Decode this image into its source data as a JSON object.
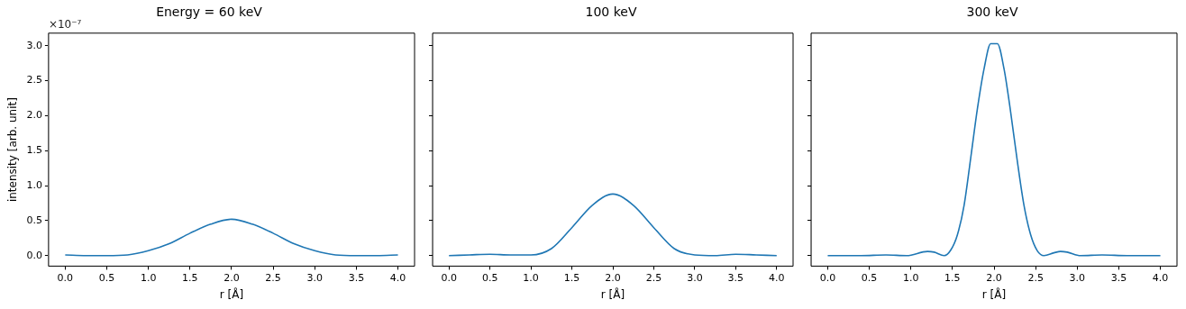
{
  "chart_data": [
    {
      "type": "line",
      "title": "Energy = 60 keV",
      "xlabel": "r [Å]",
      "ylabel": "intensity [arb. unit]",
      "annotations": [
        "×10⁻⁷"
      ],
      "color": "#1f77b4",
      "x": [
        0,
        0.25,
        0.5,
        0.75,
        1.0,
        1.25,
        1.5,
        1.75,
        2.0,
        2.25,
        2.5,
        2.75,
        3.0,
        3.25,
        3.5,
        3.75,
        4.0
      ],
      "values": [
        0.01,
        0.0,
        0.0,
        0.01,
        0.07,
        0.17,
        0.32,
        0.45,
        0.52,
        0.45,
        0.32,
        0.17,
        0.07,
        0.01,
        0.0,
        0.0,
        0.01
      ],
      "xlim": [
        -0.2,
        4.2
      ],
      "ylim": [
        -0.15,
        3.18
      ],
      "xticks": [
        {
          "value": 0,
          "label": "0.0"
        },
        0.5,
        {
          "value": 1,
          "label": "1.0"
        },
        1.5,
        {
          "value": 2,
          "label": "2.0"
        },
        2.5,
        {
          "value": 3,
          "label": "3.0"
        },
        3.5,
        {
          "value": 4,
          "label": "4.0"
        }
      ],
      "yticks": [
        {
          "value": 0,
          "label": "0.0"
        },
        0.5,
        {
          "value": 1,
          "label": "1.0"
        },
        1.5,
        {
          "value": 2,
          "label": "2.0"
        },
        2.5,
        {
          "value": 3,
          "label": "3.0"
        }
      ],
      "grid": false
    },
    {
      "type": "line",
      "title": "100 keV",
      "xlabel": "r [Å]",
      "color": "#1f77b4",
      "x": [
        0,
        0.25,
        0.5,
        0.75,
        1.0,
        1.25,
        1.5,
        1.75,
        2.0,
        2.25,
        2.5,
        2.75,
        3.0,
        3.25,
        3.5,
        3.75,
        4.0
      ],
      "values": [
        0.0,
        0.01,
        0.02,
        0.01,
        0.01,
        0.1,
        0.4,
        0.72,
        0.88,
        0.72,
        0.4,
        0.1,
        0.01,
        0.0,
        0.02,
        0.01,
        0.0
      ],
      "xlim": [
        -0.2,
        4.2
      ],
      "ylim": [
        -0.15,
        3.18
      ],
      "xticks": [
        {
          "value": 0,
          "label": "0.0"
        },
        0.5,
        {
          "value": 1,
          "label": "1.0"
        },
        1.5,
        {
          "value": 2,
          "label": "2.0"
        },
        2.5,
        {
          "value": 3,
          "label": "3.0"
        },
        3.5,
        {
          "value": 4,
          "label": "4.0"
        }
      ],
      "yticks": [
        {
          "value": 0,
          "label": null
        },
        {
          "value": 0.5,
          "label": null
        },
        {
          "value": 1,
          "label": null
        },
        {
          "value": 1.5,
          "label": null
        },
        {
          "value": 2,
          "label": null
        },
        {
          "value": 2.5,
          "label": null
        },
        {
          "value": 3,
          "label": null
        }
      ],
      "tick_labels": "x",
      "grid": false
    },
    {
      "type": "line",
      "title": "300 keV",
      "xlabel": "r [Å]",
      "color": "#1f77b4",
      "x": [
        0,
        0.4,
        0.7,
        0.95,
        1.2,
        1.28,
        1.4,
        1.48,
        1.56,
        1.64,
        1.72,
        1.8,
        1.88,
        1.96,
        2.04,
        2.12,
        2.2,
        2.28,
        2.36,
        2.44,
        2.52,
        2.6,
        2.72,
        2.8,
        2.88,
        3.04,
        3.3,
        3.6,
        4.0
      ],
      "values": [
        0.0,
        0.0,
        0.01,
        0.0,
        0.06,
        0.05,
        0.0,
        0.08,
        0.3,
        0.72,
        1.4,
        2.1,
        2.67,
        3.03,
        3.03,
        2.67,
        2.05,
        1.35,
        0.72,
        0.3,
        0.07,
        0.0,
        0.04,
        0.06,
        0.05,
        0.0,
        0.01,
        0.0,
        0.0
      ],
      "xlim": [
        -0.2,
        4.2
      ],
      "ylim": [
        -0.15,
        3.18
      ],
      "xticks": [
        {
          "value": 0,
          "label": "0.0"
        },
        0.5,
        {
          "value": 1,
          "label": "1.0"
        },
        1.5,
        {
          "value": 2,
          "label": "2.0"
        },
        2.5,
        {
          "value": 3,
          "label": "3.0"
        },
        3.5,
        {
          "value": 4,
          "label": "4.0"
        }
      ],
      "yticks": [
        {
          "value": 0,
          "label": null
        },
        {
          "value": 0.5,
          "label": null
        },
        {
          "value": 1,
          "label": null
        },
        {
          "value": 1.5,
          "label": null
        },
        {
          "value": 2,
          "label": null
        },
        {
          "value": 2.5,
          "label": null
        },
        {
          "value": 3,
          "label": null
        }
      ],
      "tick_labels": "x",
      "grid": false
    }
  ]
}
